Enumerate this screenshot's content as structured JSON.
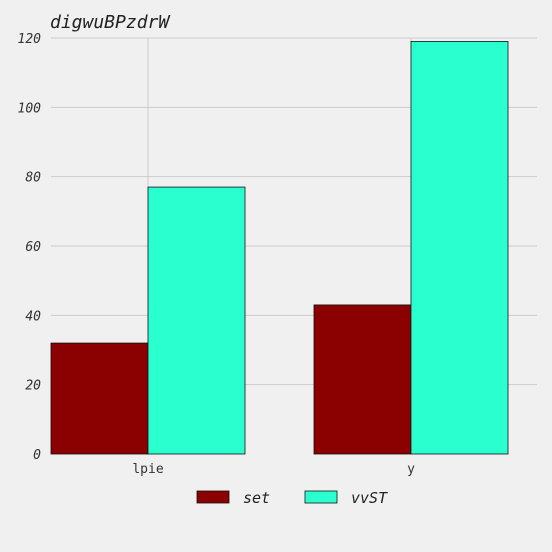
{
  "chart_data": {
    "type": "bar",
    "title": "digwuBPzdrW",
    "xlabel": "",
    "ylabel": "",
    "categories": [
      "lpie",
      "y"
    ],
    "series": [
      {
        "name": "set",
        "values": [
          32,
          43
        ],
        "color": "#8b0000"
      },
      {
        "name": "vvST",
        "values": [
          77,
          119
        ],
        "color": "#2affd0"
      }
    ],
    "ylim": [
      0,
      120
    ],
    "yticks": [
      0,
      20,
      40,
      60,
      80,
      100,
      120
    ],
    "grid": true,
    "legend_position": "bottom-center",
    "background": "#f0f0f0"
  }
}
